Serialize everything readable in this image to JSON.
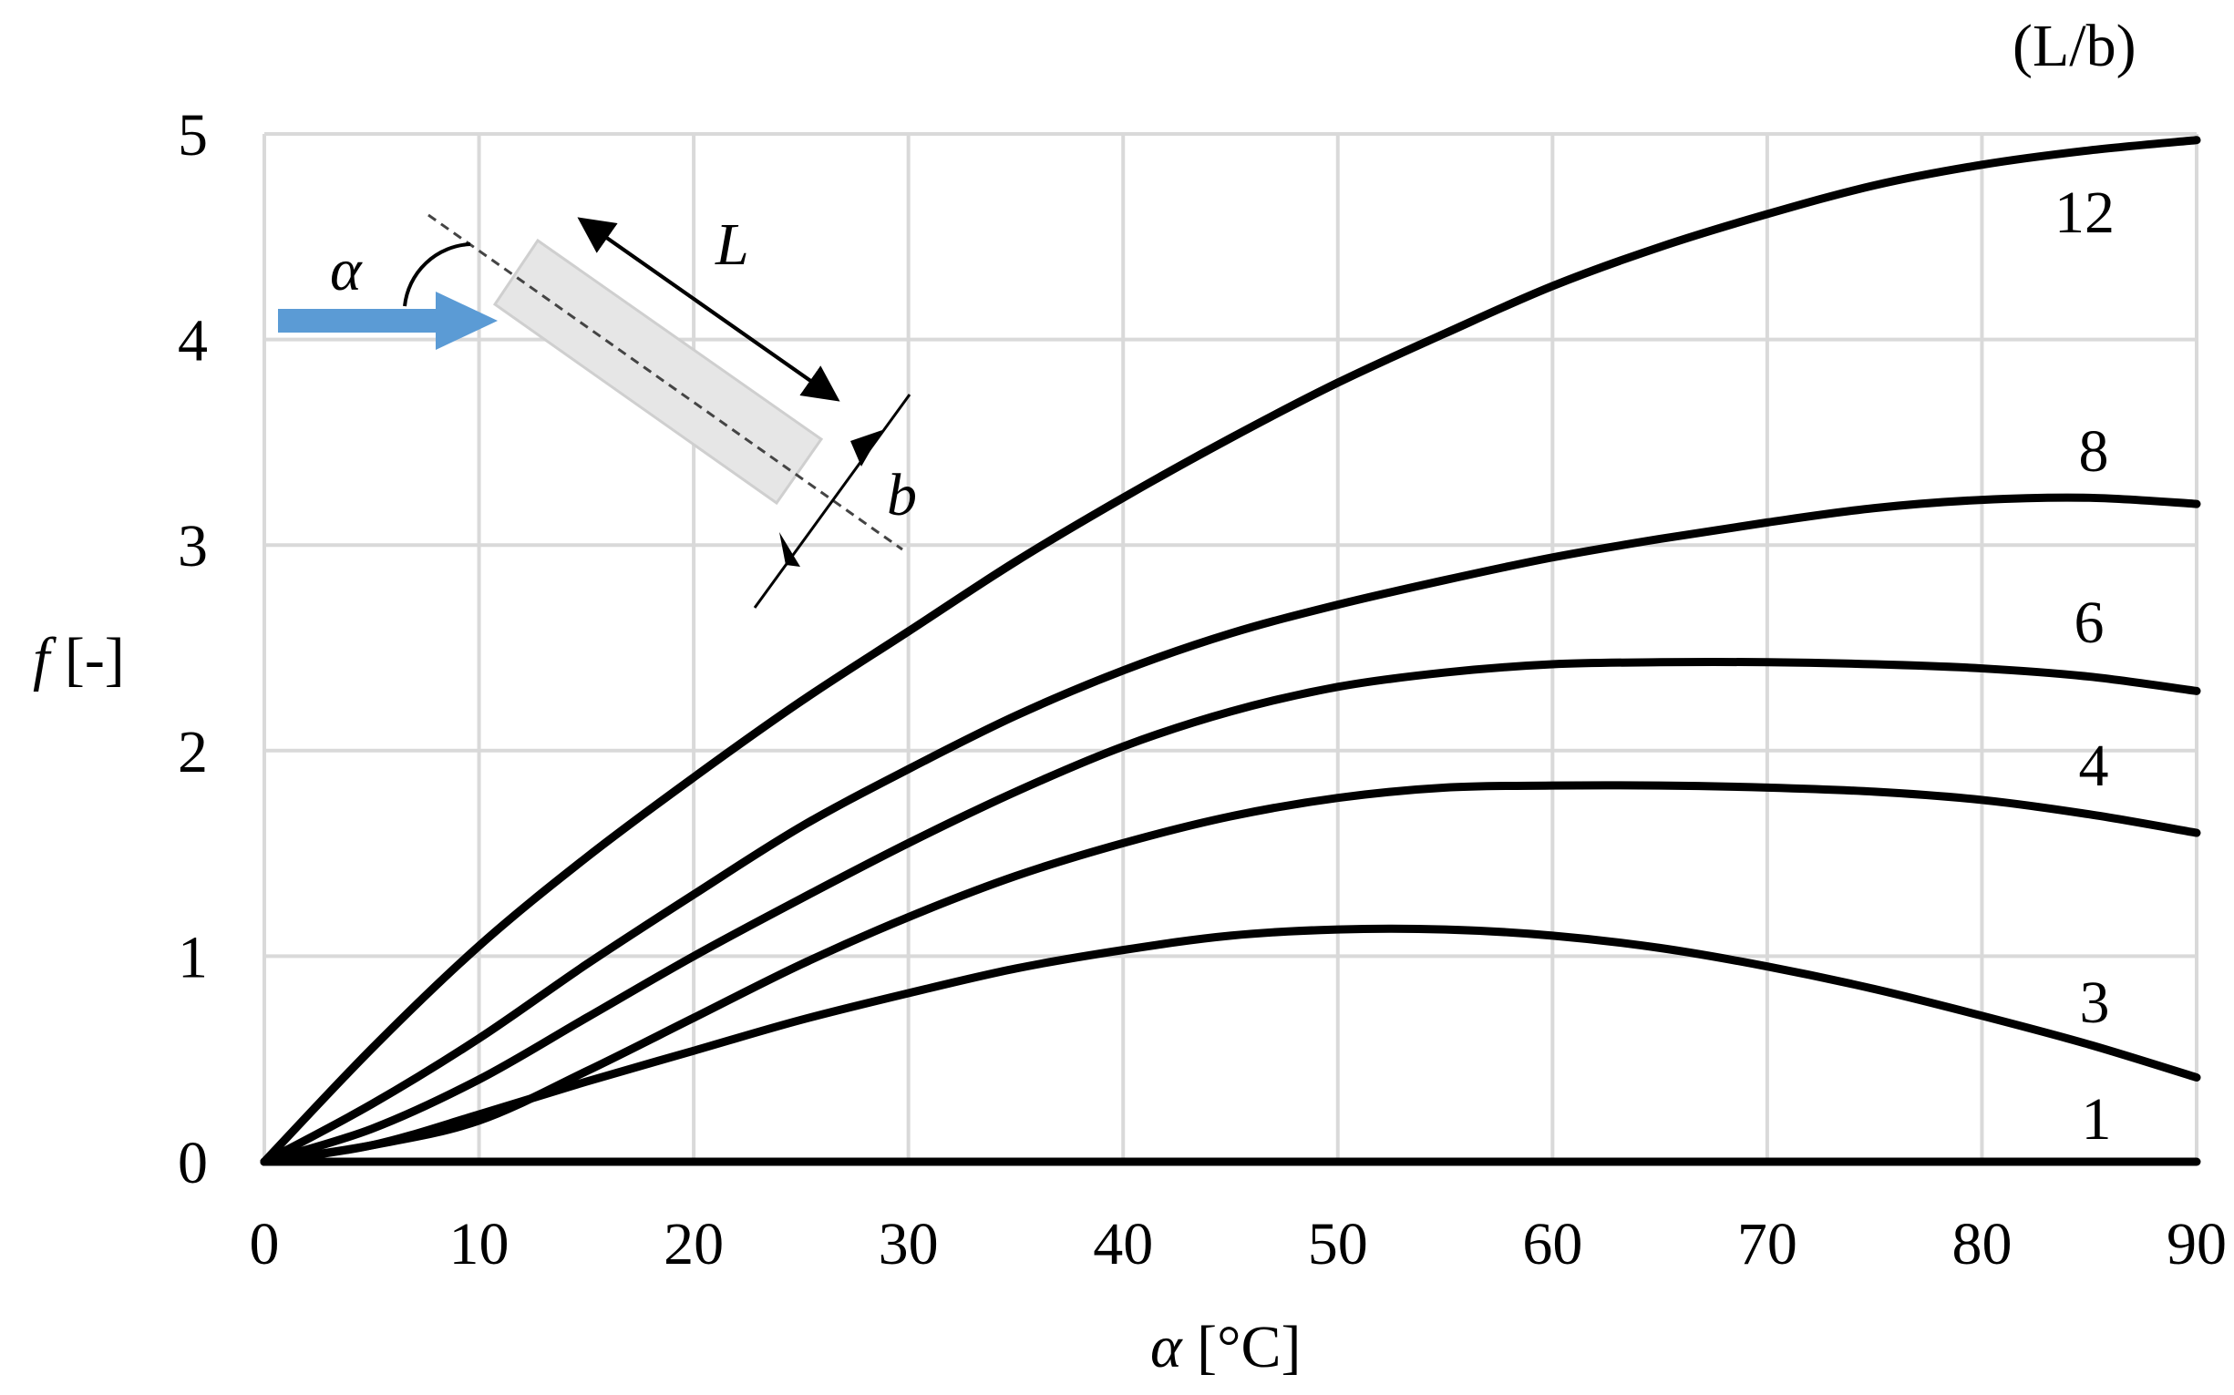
{
  "chart_data": {
    "type": "line",
    "xlabel_symbol": "α",
    "xlabel_unit": " [°C]",
    "ylabel_symbol": "f",
    "ylabel_unit": " [-]",
    "legend_title": "(L/b)",
    "xlim": [
      0,
      90
    ],
    "ylim": [
      0,
      5
    ],
    "xticks": [
      "0",
      "10",
      "20",
      "30",
      "40",
      "50",
      "60",
      "70",
      "80",
      "90"
    ],
    "yticks": [
      "0",
      "1",
      "2",
      "3",
      "4",
      "5"
    ],
    "grid": true,
    "x": [
      0,
      5,
      10,
      15,
      20,
      25,
      30,
      35,
      40,
      45,
      50,
      55,
      60,
      65,
      70,
      75,
      80,
      85,
      90
    ],
    "series": [
      {
        "name": "12",
        "values": [
          0,
          0.55,
          1.05,
          1.48,
          1.87,
          2.24,
          2.58,
          2.92,
          3.23,
          3.52,
          3.79,
          4.03,
          4.26,
          4.45,
          4.61,
          4.75,
          4.85,
          4.92,
          4.97
        ]
      },
      {
        "name": "8",
        "values": [
          0,
          0.28,
          0.6,
          0.96,
          1.3,
          1.63,
          1.91,
          2.17,
          2.39,
          2.57,
          2.71,
          2.83,
          2.94,
          3.03,
          3.11,
          3.18,
          3.22,
          3.23,
          3.2
        ]
      },
      {
        "name": "6",
        "values": [
          0,
          0.16,
          0.4,
          0.7,
          1.0,
          1.28,
          1.55,
          1.8,
          2.02,
          2.19,
          2.31,
          2.38,
          2.42,
          2.43,
          2.43,
          2.42,
          2.4,
          2.36,
          2.29
        ]
      },
      {
        "name": "4",
        "values": [
          0,
          0.08,
          0.2,
          0.44,
          0.7,
          0.96,
          1.19,
          1.39,
          1.55,
          1.68,
          1.77,
          1.82,
          1.83,
          1.83,
          1.82,
          1.8,
          1.76,
          1.69,
          1.6
        ]
      },
      {
        "name": "3",
        "values": [
          0,
          0.08,
          0.23,
          0.39,
          0.54,
          0.69,
          0.82,
          0.94,
          1.03,
          1.1,
          1.13,
          1.13,
          1.1,
          1.04,
          0.95,
          0.84,
          0.71,
          0.57,
          0.41
        ]
      },
      {
        "name": "1",
        "values": [
          0,
          0,
          0,
          0,
          0,
          0,
          0,
          0,
          0,
          0,
          0,
          0,
          0,
          0,
          0,
          0,
          0,
          0,
          0
        ]
      }
    ],
    "inset": {
      "angle_label": "α",
      "length_label": "L",
      "width_label": "b",
      "arrow_color": "#5b9bd5",
      "plate_color": "#e6e6e6"
    }
  }
}
